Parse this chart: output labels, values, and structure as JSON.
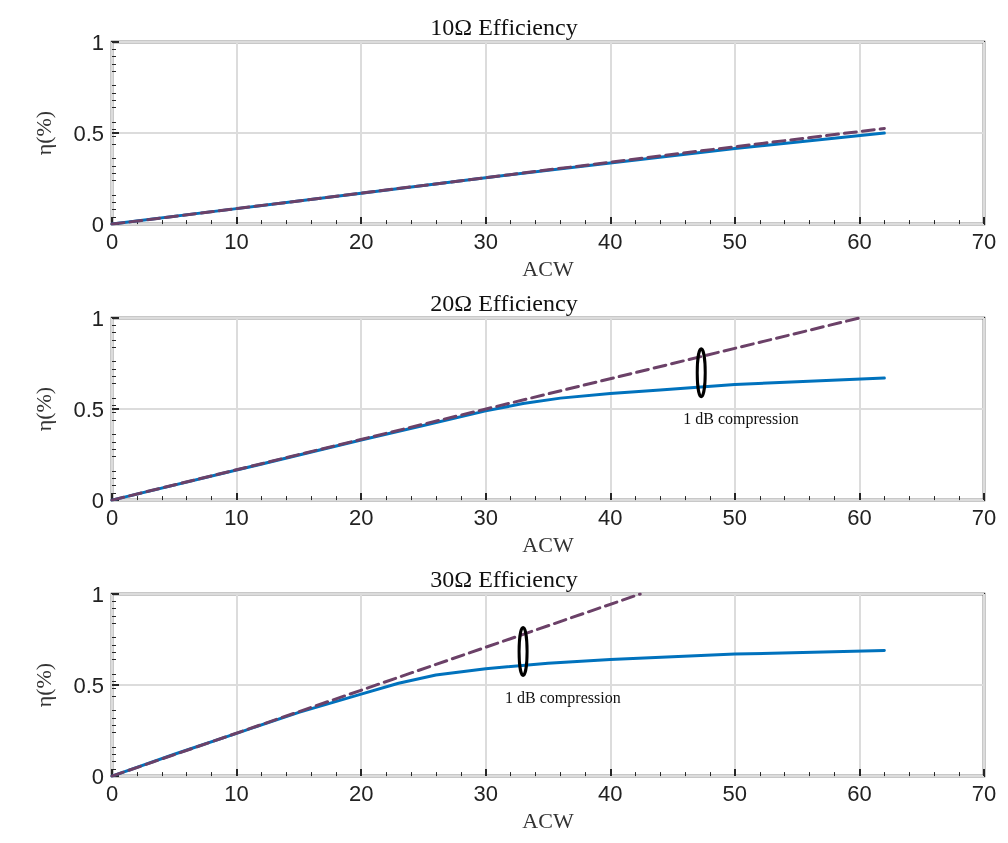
{
  "chart_data": [
    {
      "type": "line",
      "title": "10Ω Efficiency",
      "xlabel": "ACW",
      "ylabel": "η(%)",
      "xlim": [
        0,
        70
      ],
      "xticks": [
        0,
        10,
        20,
        30,
        40,
        50,
        60,
        70
      ],
      "ylim": [
        0,
        1
      ],
      "yticks": [
        0,
        0.5,
        1
      ],
      "grid": true,
      "marker": "none",
      "series": [
        {
          "color": "#6b4168",
          "line_style": "dashed",
          "x": [
            0,
            10,
            20,
            30,
            40,
            50,
            62
          ],
          "values": [
            0,
            0.085,
            0.17,
            0.255,
            0.34,
            0.425,
            0.525
          ]
        },
        {
          "color": "#0072bd",
          "line_style": "solid",
          "x": [
            0,
            10,
            20,
            30,
            40,
            50,
            62
          ],
          "values": [
            0,
            0.085,
            0.17,
            0.255,
            0.335,
            0.415,
            0.5
          ]
        }
      ]
    },
    {
      "type": "line",
      "title": "20Ω Efficiency",
      "xlabel": "ACW",
      "ylabel": "η(%)",
      "xlim": [
        0,
        70
      ],
      "xticks": [
        0,
        10,
        20,
        30,
        40,
        50,
        60,
        70
      ],
      "ylim": [
        0,
        1
      ],
      "yticks": [
        0,
        0.5,
        1
      ],
      "grid": true,
      "marker": "none",
      "annotations": [
        {
          "text": "1 dB compression",
          "x": 47.3,
          "y": 0.622
        }
      ],
      "series": [
        {
          "color": "#6b4168",
          "line_style": "dashed",
          "x": [
            0,
            60
          ],
          "values": [
            0,
            1
          ]
        },
        {
          "color": "#0072bd",
          "line_style": "solid",
          "x": [
            0,
            10,
            20,
            25,
            30,
            33,
            36,
            40,
            44,
            47,
            50,
            55,
            62
          ],
          "values": [
            0,
            0.165,
            0.33,
            0.41,
            0.49,
            0.53,
            0.56,
            0.585,
            0.605,
            0.62,
            0.635,
            0.65,
            0.67
          ]
        }
      ]
    },
    {
      "type": "line",
      "title": "30Ω Efficiency",
      "xlabel": "ACW",
      "ylabel": "η(%)",
      "xlim": [
        0,
        70
      ],
      "xticks": [
        0,
        10,
        20,
        30,
        40,
        50,
        60,
        70
      ],
      "ylim": [
        0,
        1
      ],
      "yticks": [
        0,
        0.5,
        1
      ],
      "grid": true,
      "marker": "none",
      "annotations": [
        {
          "text": "1 dB compression",
          "x": 33,
          "y": 0.608
        }
      ],
      "series": [
        {
          "color": "#6b4168",
          "line_style": "dashed",
          "x": [
            0,
            42.4
          ],
          "values": [
            0,
            1
          ]
        },
        {
          "color": "#0072bd",
          "line_style": "solid",
          "x": [
            0,
            5,
            10,
            15,
            20,
            23,
            26,
            30,
            35,
            40,
            50,
            62
          ],
          "values": [
            0,
            0.12,
            0.235,
            0.35,
            0.45,
            0.51,
            0.555,
            0.59,
            0.62,
            0.64,
            0.67,
            0.69
          ]
        }
      ]
    }
  ]
}
